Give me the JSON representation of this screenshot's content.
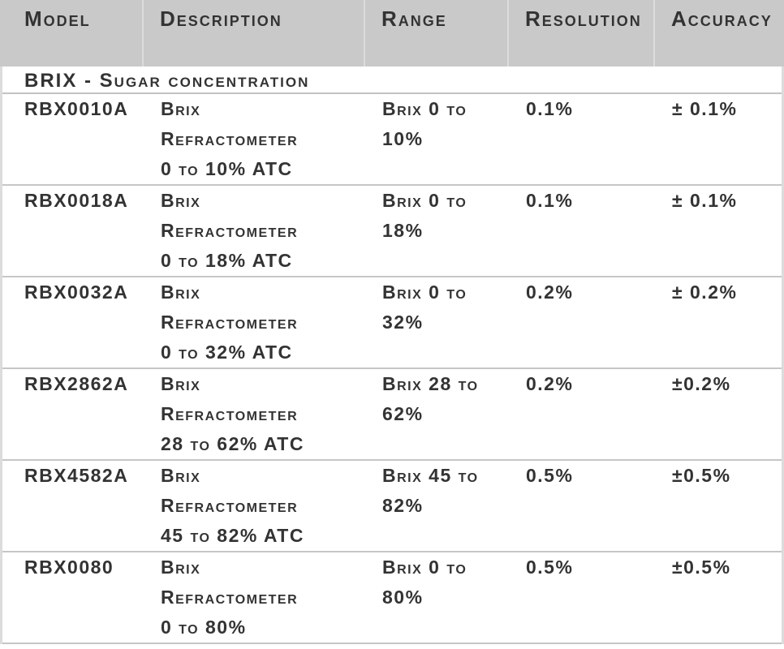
{
  "columns": [
    "Model",
    "Description",
    "Range",
    "Resolution",
    "Accuracy"
  ],
  "section_title": "BRIX - Sugar concentration",
  "rows": [
    {
      "model": "RBX0010A",
      "description": "Brix\nRefractometer\n0 to 10% ATC",
      "range": "Brix 0 to\n10%",
      "resolution": "0.1%",
      "accuracy": "± 0.1%"
    },
    {
      "model": "RBX0018A",
      "description": "Brix\nRefractometer\n0 to 18% ATC",
      "range": "Brix 0 to\n18%",
      "resolution": "0.1%",
      "accuracy": "± 0.1%"
    },
    {
      "model": "RBX0032A",
      "description": "Brix\nRefractometer\n0 to 32% ATC",
      "range": "Brix 0 to\n32%",
      "resolution": "0.2%",
      "accuracy": "± 0.2%"
    },
    {
      "model": "RBX2862A",
      "description": "Brix\nRefractometer\n28 to 62% ATC",
      "range": "Brix 28 to\n62%",
      "resolution": "0.2%",
      "accuracy": "±0.2%"
    },
    {
      "model": "RBX4582A",
      "description": "Brix\nRefractometer\n45 to 82% ATC",
      "range": "Brix 45 to\n82%",
      "resolution": "0.5%",
      "accuracy": "±0.5%"
    },
    {
      "model": "RBX0080",
      "description": "Brix\nRefractometer\n0 to 80%",
      "range": "Brix 0 to\n80%",
      "resolution": "0.5%",
      "accuracy": "±0.5%"
    }
  ],
  "colors": {
    "header_bg": "#c9c9c9",
    "text": "#333333",
    "row_border": "#c6c6c6",
    "side_border": "#dcdcdc"
  }
}
